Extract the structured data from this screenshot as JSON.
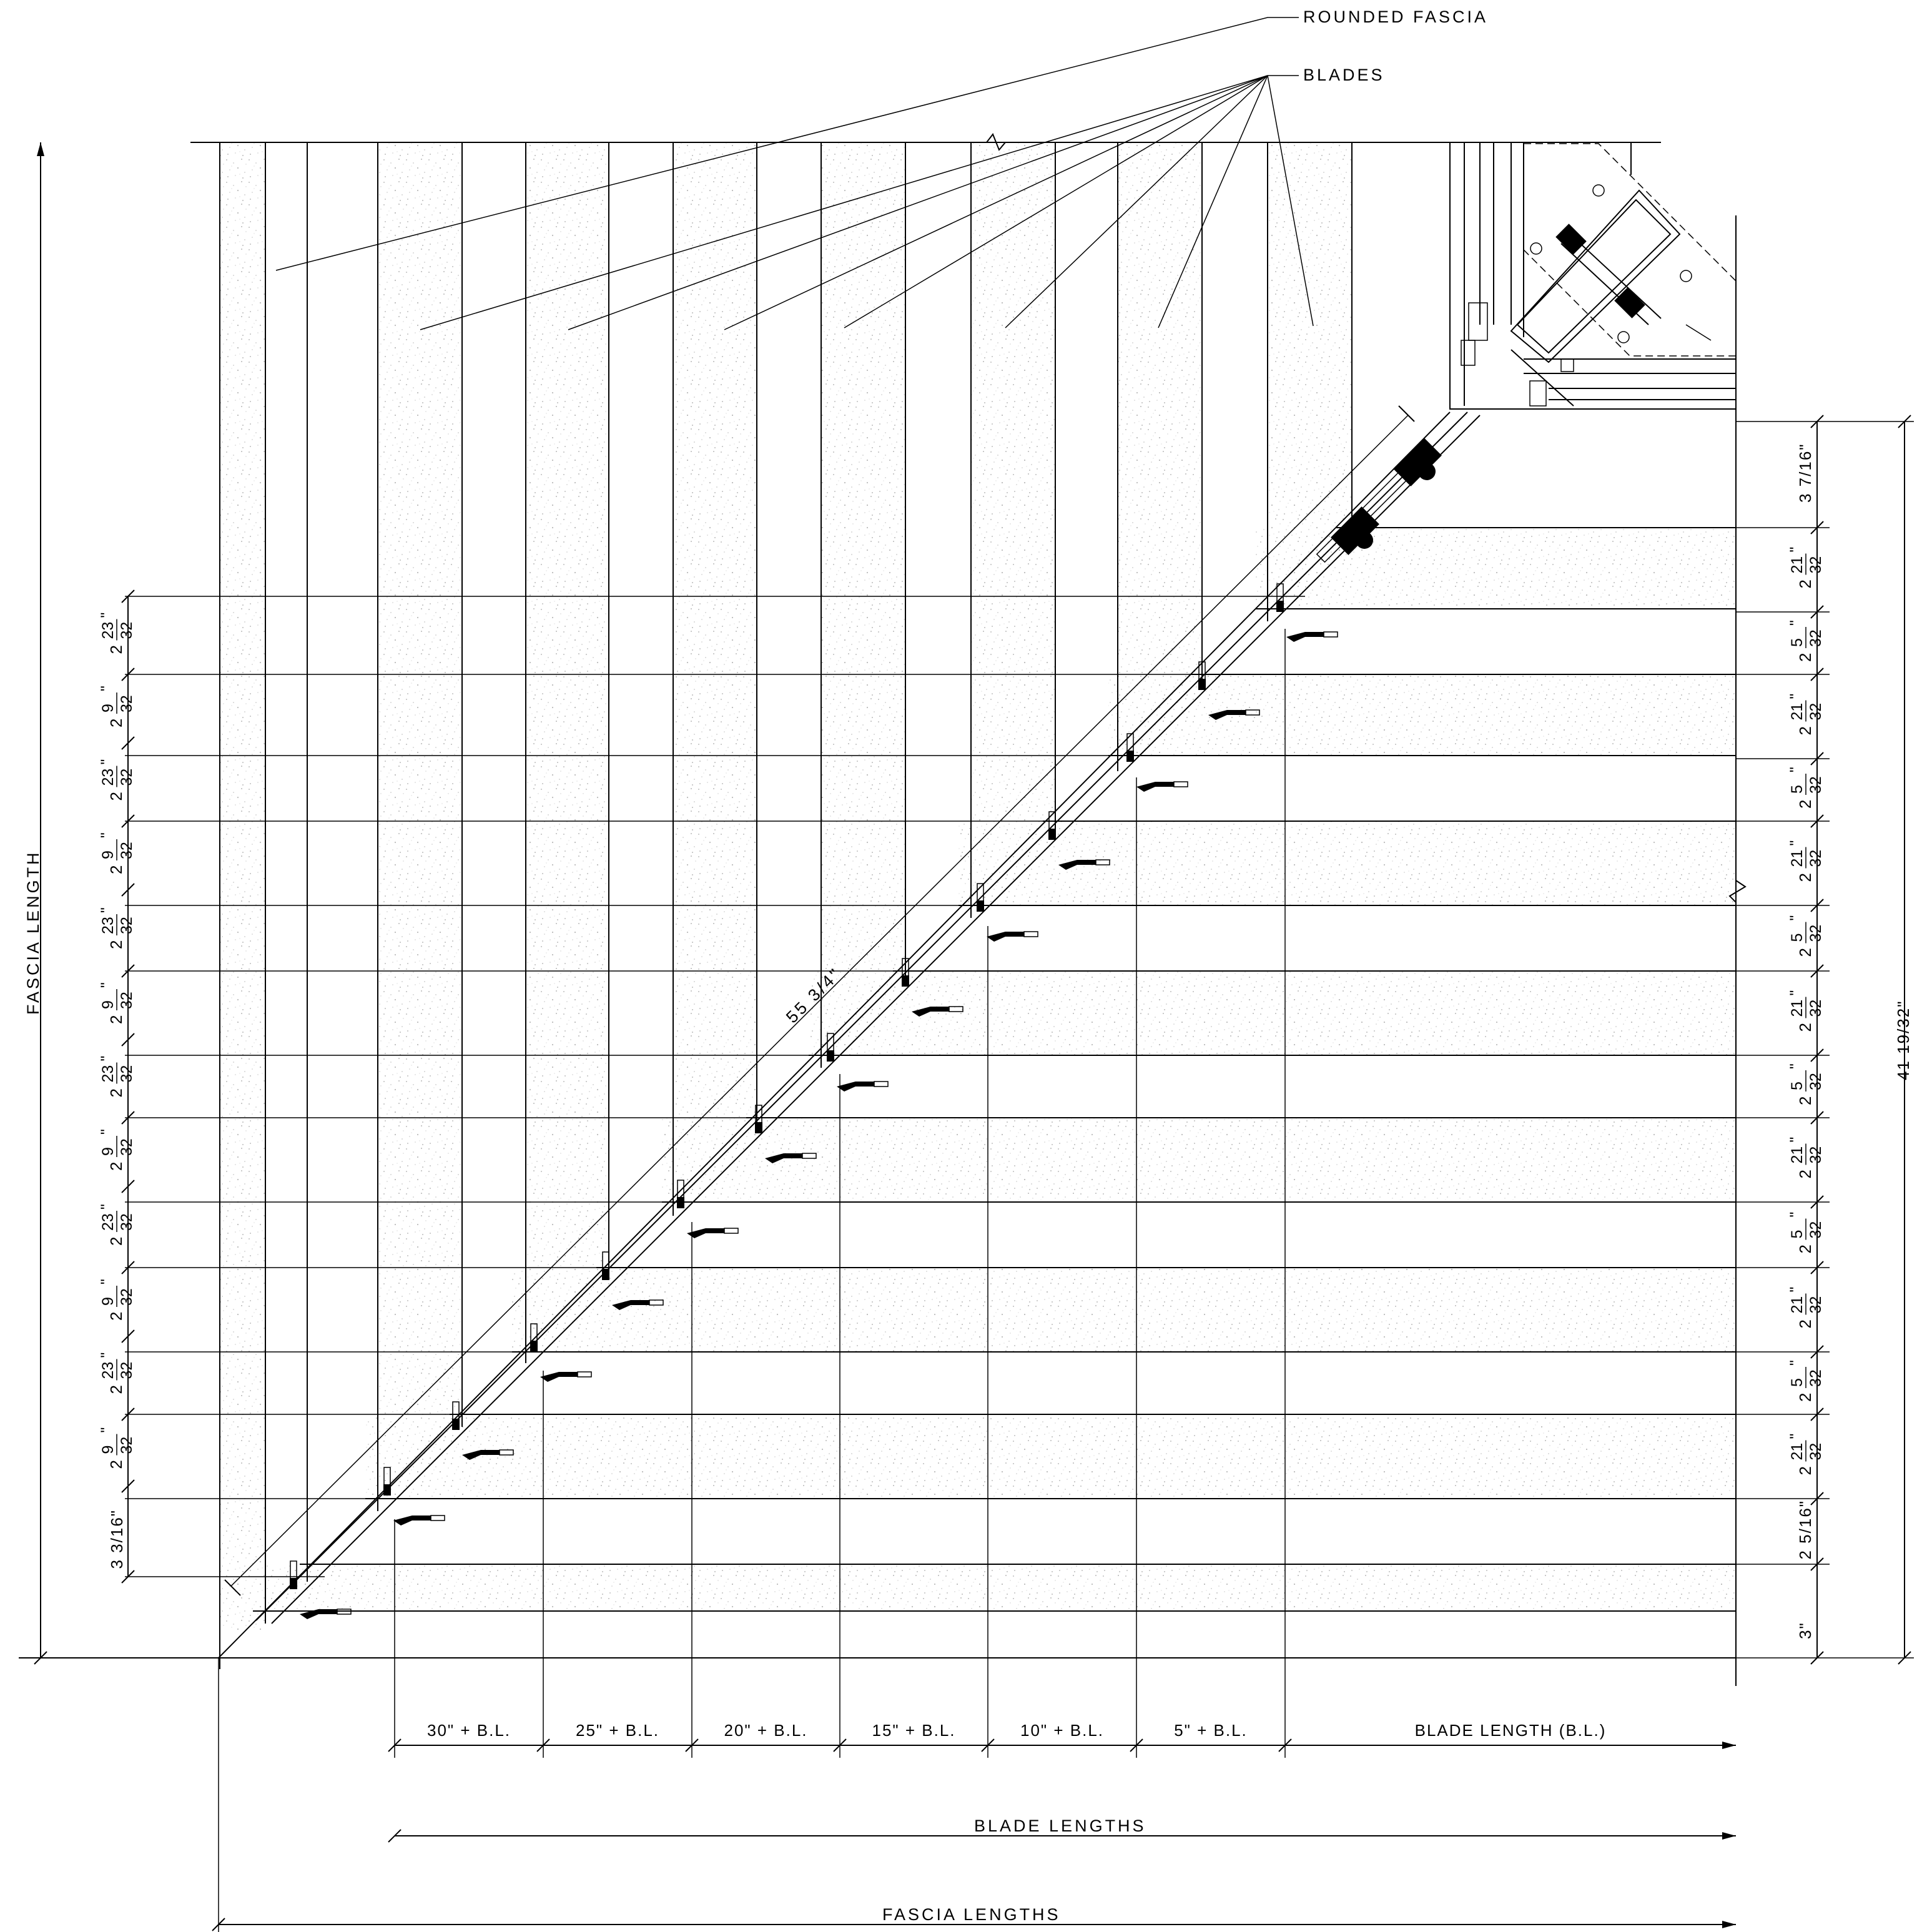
{
  "labels": {
    "rounded_fascia": "ROUNDED FASCIA",
    "blades": "BLADES",
    "fascia_length": "FASCIA LENGTH",
    "blade_lengths": "BLADE LENGTHS",
    "fascia_lengths": "FASCIA LENGTHS",
    "diagonal": "55 3/4\""
  },
  "bottom_dims": [
    "30\" + B.L.",
    "25\" + B.L.",
    "20\" + B.L.",
    "15\" + B.L.",
    "10\" + B.L.",
    "5\" + B.L.",
    "BLADE LENGTH (B.L.)"
  ],
  "left_dims": [
    {
      "whole": "2",
      "num": "23",
      "den": "32"
    },
    {
      "whole": "2",
      "num": "9",
      "den": "32"
    },
    {
      "whole": "2",
      "num": "23",
      "den": "32"
    },
    {
      "whole": "2",
      "num": "9",
      "den": "32"
    },
    {
      "whole": "2",
      "num": "23",
      "den": "32"
    },
    {
      "whole": "2",
      "num": "9",
      "den": "32"
    },
    {
      "whole": "2",
      "num": "23",
      "den": "32"
    },
    {
      "whole": "2",
      "num": "9",
      "den": "32"
    },
    {
      "whole": "2",
      "num": "23",
      "den": "32"
    },
    {
      "whole": "2",
      "num": "9",
      "den": "32"
    },
    {
      "whole": "2",
      "num": "23",
      "den": "32"
    },
    {
      "whole": "2",
      "num": "9",
      "den": "32"
    },
    {
      "text": "3 3/16\""
    }
  ],
  "right_dims": [
    {
      "text": "3 7/16\""
    },
    {
      "whole": "2",
      "num": "21",
      "den": "32"
    },
    {
      "whole": "2",
      "num": "5",
      "den": "32"
    },
    {
      "whole": "2",
      "num": "21",
      "den": "32"
    },
    {
      "whole": "2",
      "num": "5",
      "den": "32"
    },
    {
      "whole": "2",
      "num": "21",
      "den": "32"
    },
    {
      "whole": "2",
      "num": "5",
      "den": "32"
    },
    {
      "whole": "2",
      "num": "21",
      "den": "32"
    },
    {
      "whole": "2",
      "num": "5",
      "den": "32"
    },
    {
      "whole": "2",
      "num": "21",
      "den": "32"
    },
    {
      "whole": "2",
      "num": "5",
      "den": "32"
    },
    {
      "whole": "2",
      "num": "21",
      "den": "32"
    },
    {
      "whole": "2",
      "num": "5",
      "den": "32"
    },
    {
      "whole": "2",
      "num": "21",
      "den": "32"
    },
    {
      "text": "2 5/16\""
    },
    {
      "text": "3\""
    }
  ],
  "overall_right": "41 19/32\"",
  "colors": {
    "line": "#000000",
    "speckle": "#c8c8c8",
    "background": "#ffffff"
  }
}
